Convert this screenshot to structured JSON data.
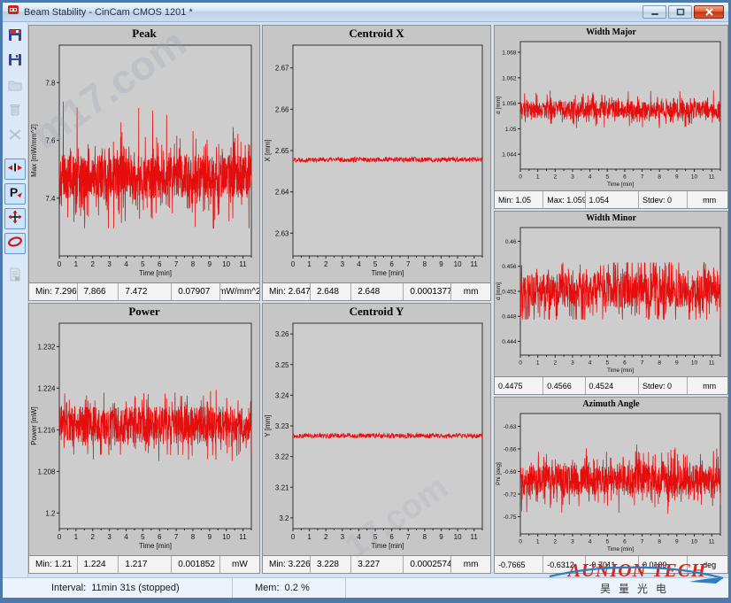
{
  "window": {
    "title": "Beam Stability - CinCam CMOS 1201 *",
    "controls": [
      "minimize",
      "maximize",
      "close"
    ]
  },
  "toolbar": {
    "buttons": [
      {
        "id": "save",
        "icon": "save-image-icon",
        "state": "enabled"
      },
      {
        "id": "save-data",
        "icon": "save-data-icon",
        "state": "enabled"
      },
      {
        "id": "open",
        "icon": "folder-icon",
        "state": "disabled"
      },
      {
        "id": "delete",
        "icon": "trash-icon",
        "state": "disabled"
      },
      {
        "id": "clear",
        "icon": "clear-icon",
        "state": "disabled"
      },
      {
        "id": "toggle-peak",
        "icon": "peak-toggle-icon",
        "state": "active"
      },
      {
        "id": "toggle-power",
        "icon": "power-toggle-icon",
        "state": "active"
      },
      {
        "id": "toggle-centroid",
        "icon": "centroid-toggle-icon",
        "state": "active"
      },
      {
        "id": "toggle-width",
        "icon": "width-toggle-icon",
        "state": "active"
      },
      {
        "id": "report",
        "icon": "report-icon",
        "state": "disabled"
      }
    ]
  },
  "status_bar": {
    "interval": "Interval:  11min 31s (stopped)",
    "memory": "Mem:  0.2 %"
  },
  "watermark": {
    "brand": "AUNION TECH",
    "sub": "昊量光电"
  },
  "page_watermarks": [
    "m17.com",
    "17.com"
  ],
  "colors": {
    "series_red": "#e60d0d",
    "frame_blue": "#4d7aad",
    "panel_gray": "#c6c6c6",
    "plot_gray": "#cdcdcd"
  },
  "chart_data": [
    {
      "id": "peak",
      "type": "line",
      "title": "Peak",
      "ylabel": "Max [mW/mm^2]",
      "xlabel": "Time [min]",
      "yticks": [
        7.8,
        7.6,
        7.4
      ],
      "ylim": [
        7.2,
        7.93
      ],
      "xticks": [
        0,
        1,
        2,
        3,
        4,
        5,
        6,
        7,
        8,
        9,
        10,
        11
      ],
      "xlim": [
        0,
        11.5
      ],
      "stats": {
        "min": 7.296,
        "max": 7.866,
        "mean": 7.472,
        "stdev": 0.07907,
        "unit": "mW/mm^2"
      },
      "stats_cells": [
        "Min: 7.296",
        "7.866",
        "7.472",
        "0.07907",
        "mW/mm^2"
      ],
      "series": {
        "mean": 7.475,
        "a1": 0.075,
        "p2": 0.35,
        "a2": 0.1,
        "p3": 0.02,
        "a3": 0.35,
        "n": 1200,
        "seed": 11,
        "clip": [
          7.296,
          7.866
        ]
      }
    },
    {
      "id": "centroid-x",
      "type": "line",
      "title": "Centroid X",
      "ylabel": "X [mm]",
      "xlabel": "Time [min]",
      "yticks": [
        2.67,
        2.66,
        2.65,
        2.64,
        2.63
      ],
      "ylim": [
        2.6245,
        2.6755
      ],
      "xticks": [
        0,
        1,
        2,
        3,
        4,
        5,
        6,
        7,
        8,
        9,
        10,
        11
      ],
      "xlim": [
        0,
        11.5
      ],
      "stats": {
        "min": 2.647,
        "max": 2.648,
        "mean": 2.648,
        "stdev": 0.0001377,
        "unit": "mm"
      },
      "stats_cells": [
        "Min: 2.647",
        "2.648",
        "2.648",
        "0.0001377",
        "mm"
      ],
      "series": {
        "mean": 2.6478,
        "a1": 0.0006,
        "p2": 0,
        "a2": 0,
        "p3": 0,
        "a3": 0,
        "n": 600,
        "seed": 22,
        "clip": [
          2.647,
          2.6488
        ]
      }
    },
    {
      "id": "width-major",
      "type": "line",
      "title": "Width Major",
      "ylabel": "d [mm]",
      "xlabel": "Time [min]",
      "yticks": [
        1.068,
        1.062,
        1.056,
        1.05,
        1.044
      ],
      "ylim": [
        1.0405,
        1.0705
      ],
      "xticks": [
        0,
        1,
        2,
        3,
        4,
        5,
        6,
        7,
        8,
        9,
        10,
        11
      ],
      "xlim": [
        0,
        11.5
      ],
      "stats": {
        "min": 1.05,
        "max": 1.059,
        "mean": 1.054,
        "stdev": 0,
        "unit": "mm"
      },
      "stats_cells": [
        "Min: 1.05",
        "Max: 1.059",
        "1.054",
        "Stdev: 0",
        "mm"
      ],
      "series": {
        "mean": 1.0545,
        "a1": 0.002,
        "p2": 0.35,
        "a2": 0.003,
        "p3": 0,
        "a3": 0,
        "n": 900,
        "seed": 33,
        "clip": [
          1.05,
          1.059
        ]
      }
    },
    {
      "id": "power",
      "type": "line",
      "title": "Power",
      "ylabel": "Power [mW]",
      "xlabel": "Time [min]",
      "yticks": [
        1.232,
        1.224,
        1.216,
        1.208,
        1.2
      ],
      "ylim": [
        1.197,
        1.2365
      ],
      "xticks": [
        0,
        1,
        2,
        3,
        4,
        5,
        6,
        7,
        8,
        9,
        10,
        11
      ],
      "xlim": [
        0,
        11.5
      ],
      "stats": {
        "min": 1.21,
        "max": 1.224,
        "mean": 1.217,
        "stdev": 0.001852,
        "unit": "mW"
      },
      "stats_cells": [
        "Min: 1.21",
        "1.224",
        "1.217",
        "0.001852",
        "mW"
      ],
      "series": {
        "mean": 1.217,
        "a1": 0.0035,
        "p2": 0.3,
        "a2": 0.004,
        "p3": 0,
        "a3": 0,
        "n": 1000,
        "seed": 44,
        "clip": [
          1.21,
          1.224
        ]
      }
    },
    {
      "id": "centroid-y",
      "type": "line",
      "title": "Centroid Y",
      "ylabel": "Y [mm]",
      "xlabel": "Time [min]",
      "yticks": [
        3.26,
        3.25,
        3.24,
        3.23,
        3.22,
        3.21,
        3.2
      ],
      "ylim": [
        3.1965,
        3.2635
      ],
      "xticks": [
        0,
        1,
        2,
        3,
        4,
        5,
        6,
        7,
        8,
        9,
        10,
        11
      ],
      "xlim": [
        0,
        11.5
      ],
      "stats": {
        "min": 3.226,
        "max": 3.228,
        "mean": 3.227,
        "stdev": 0.0002574,
        "unit": "mm"
      },
      "stats_cells": [
        "Min: 3.226",
        "3.228",
        "3.227",
        "0.0002574",
        "mm"
      ],
      "series": {
        "mean": 3.2268,
        "a1": 0.0008,
        "p2": 0,
        "a2": 0,
        "p3": 0,
        "a3": 0,
        "n": 600,
        "seed": 55,
        "clip": [
          3.226,
          3.228
        ]
      }
    },
    {
      "id": "width-minor",
      "type": "line",
      "title": "Width Minor",
      "ylabel": "d [mm]",
      "xlabel": "Time [min]",
      "yticks": [
        0.46,
        0.456,
        0.452,
        0.448,
        0.444
      ],
      "ylim": [
        0.4418,
        0.4622
      ],
      "xticks": [
        0,
        1,
        2,
        3,
        4,
        5,
        6,
        7,
        8,
        9,
        10,
        11
      ],
      "xlim": [
        0,
        11.5
      ],
      "stats": {
        "min": 0.4475,
        "max": 0.4566,
        "mean": 0.4524,
        "stdev": 0,
        "unit": "mm"
      },
      "stats_cells": [
        "0.4475",
        "0.4566",
        "0.4524",
        "Stdev: 0",
        "mm"
      ],
      "series": {
        "mean": 0.4522,
        "a1": 0.0028,
        "p2": 0.4,
        "a2": 0.0045,
        "p3": 0,
        "a3": 0,
        "n": 900,
        "seed": 66,
        "clip": [
          0.4475,
          0.4566
        ]
      }
    },
    {
      "id": "azimuth",
      "type": "line",
      "title": "Azimuth Angle",
      "ylabel": "Phi [deg]",
      "xlabel": "Time [min]",
      "yticks": [
        -0.63,
        -0.66,
        -0.69,
        -0.72,
        -0.75
      ],
      "ylim": [
        -0.773,
        -0.613
      ],
      "xticks": [
        0,
        1,
        2,
        3,
        4,
        5,
        6,
        7,
        8,
        9,
        10,
        11
      ],
      "xlim": [
        0,
        11.5
      ],
      "stats": {
        "min": -0.7665,
        "max": -0.6312,
        "mean": -0.7011,
        "stdev": 0.0109,
        "unit": "deg"
      },
      "stats_cells": [
        "-0.7665",
        "-0.6312",
        "-0.7011",
        "0.0109",
        "deg"
      ],
      "series": {
        "mean": -0.701,
        "a1": 0.02,
        "p2": 0.4,
        "a2": 0.028,
        "p3": 0,
        "a3": 0,
        "n": 1000,
        "seed": 77,
        "clip": [
          -0.7665,
          -0.6312
        ]
      }
    }
  ]
}
